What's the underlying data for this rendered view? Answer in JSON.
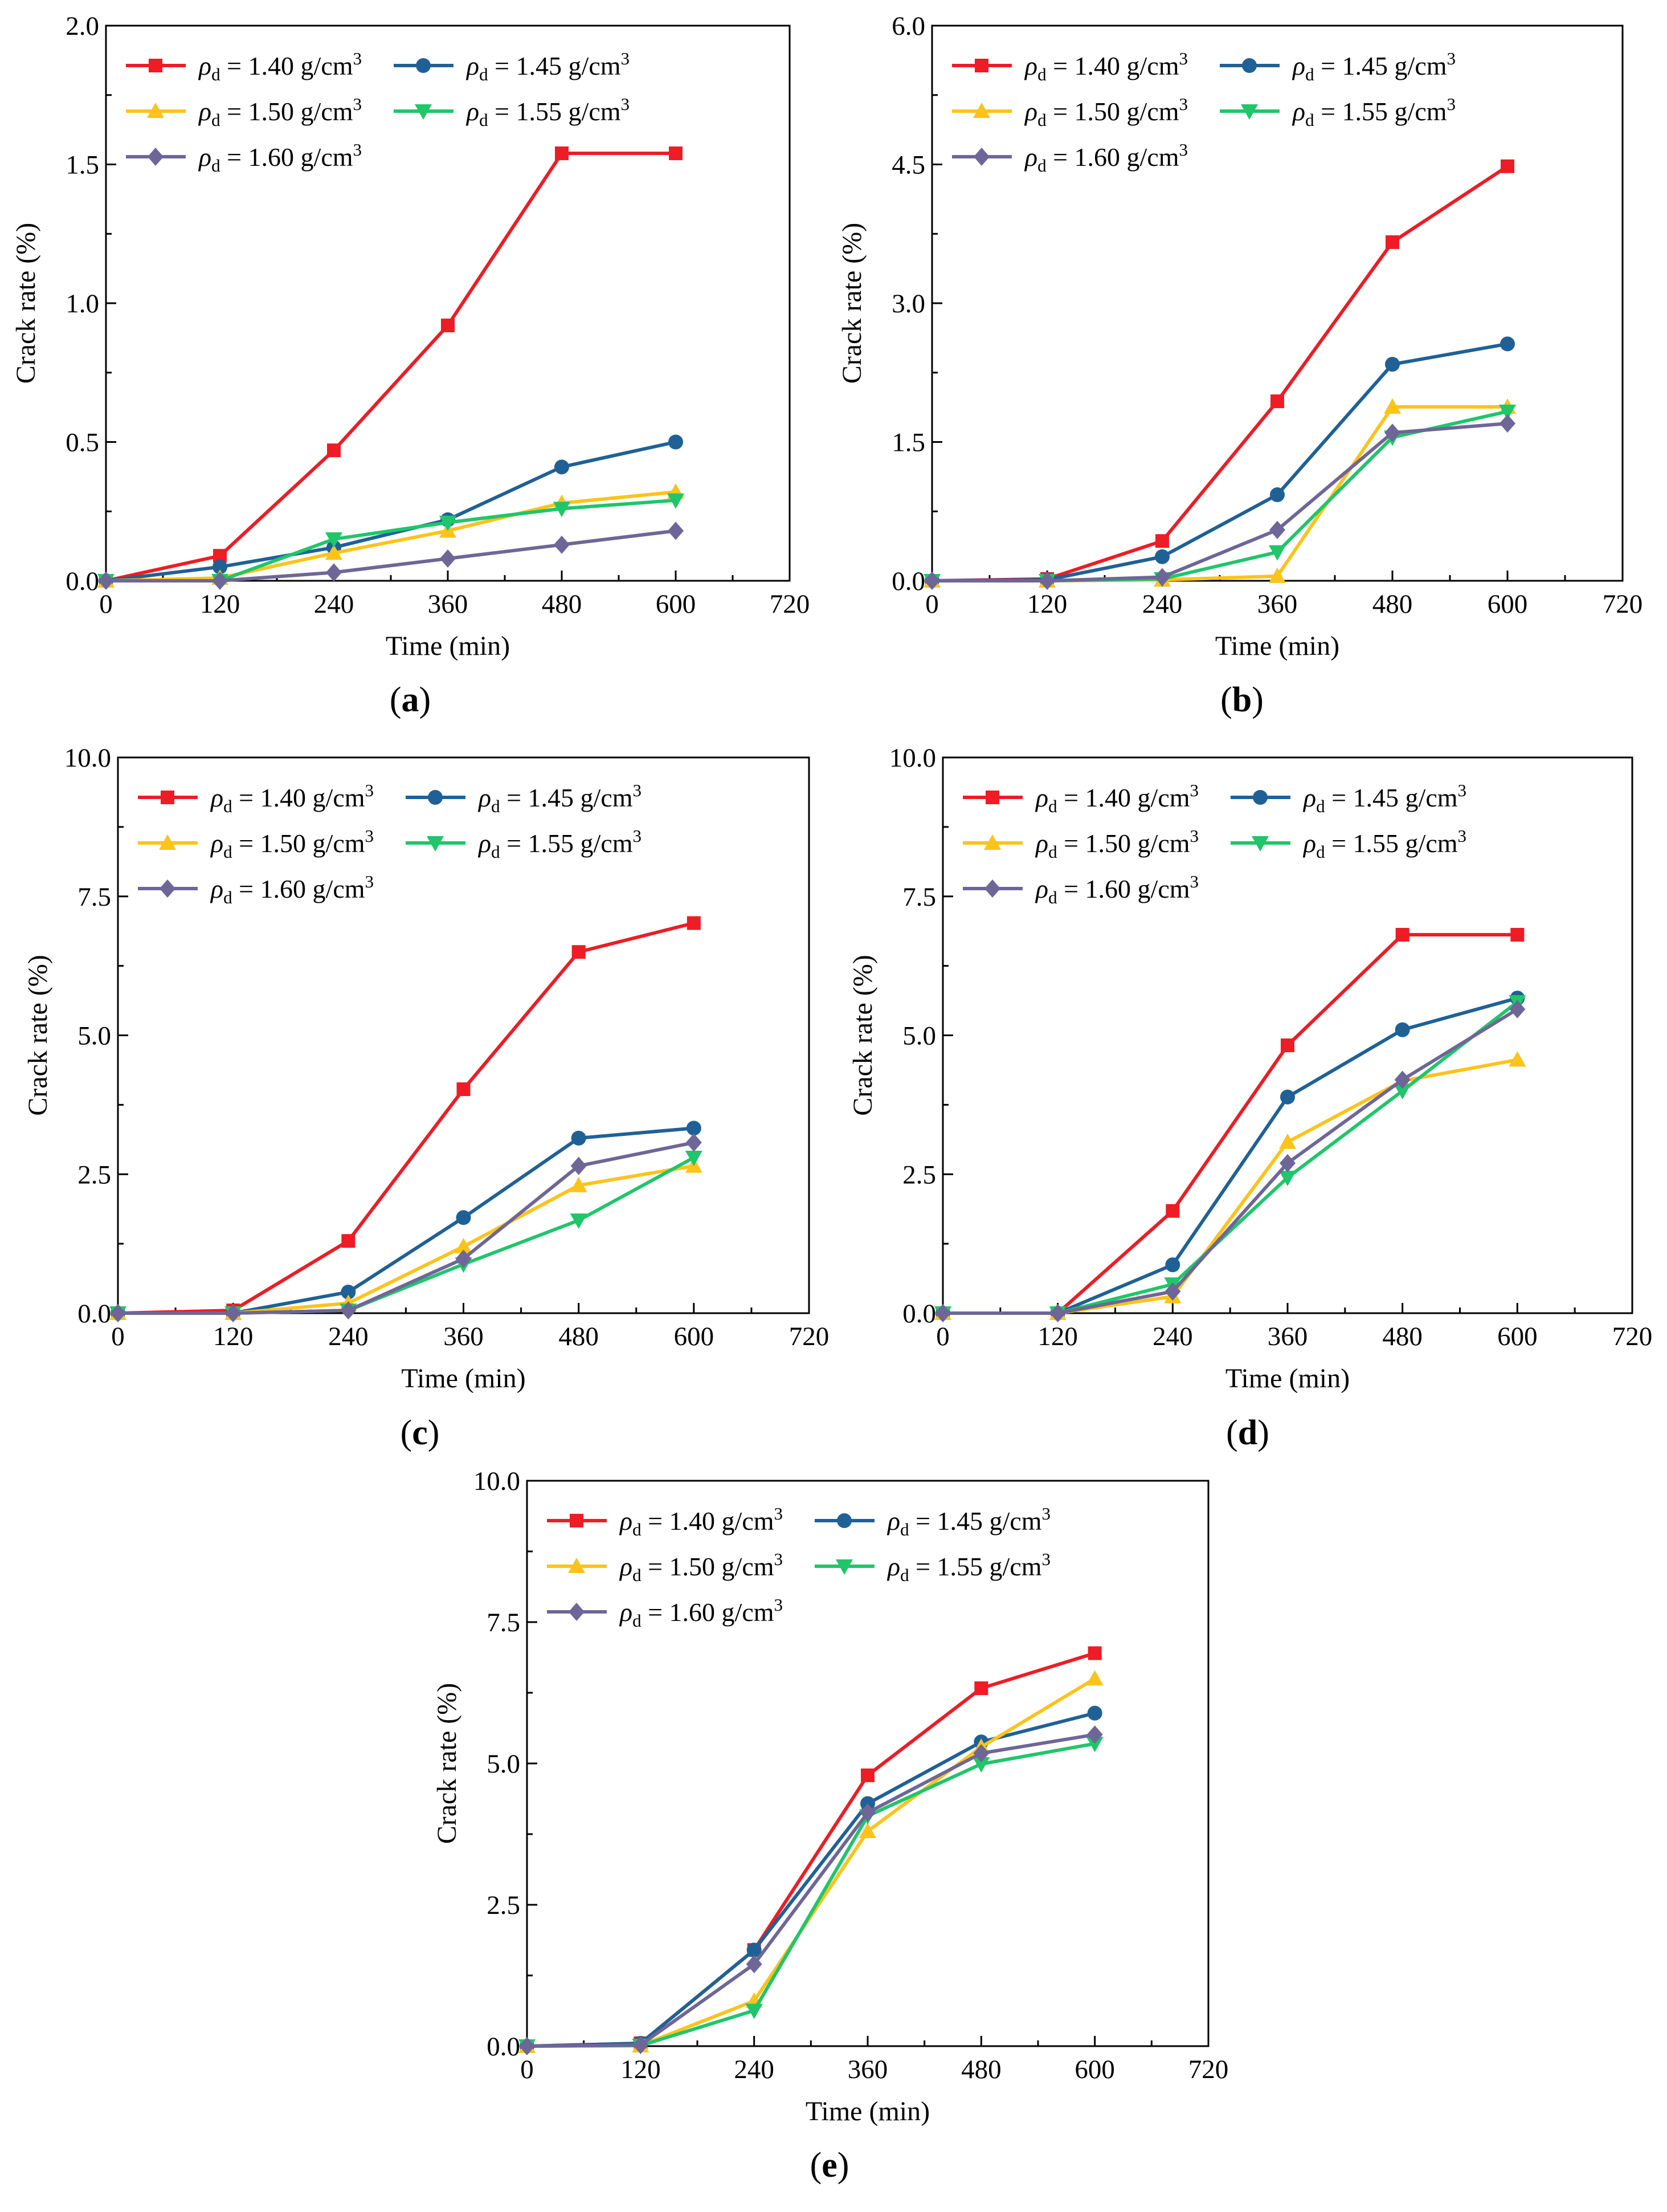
{
  "figure": {
    "colors": {
      "s140": "#EE1C25",
      "s145": "#1F6196",
      "s150": "#FCC31A",
      "s155": "#1FC66A",
      "s160": "#6E6697"
    },
    "legend": {
      "rho": "ρ",
      "sub": "d",
      "unit": "g/cm",
      "sup": "3",
      "values": [
        "= 1.40",
        "= 1.45",
        "= 1.50",
        "= 1.55",
        "= 1.60"
      ]
    },
    "panel_paren_open": "(",
    "panel_paren_close": ")"
  },
  "chart_data": [
    {
      "panel": "a",
      "type": "line",
      "xlabel": "Time (min)",
      "ylabel": "Crack rate (%)",
      "xlim": [
        0,
        720
      ],
      "ylim": [
        0,
        2.0
      ],
      "xticks": [
        "0",
        "120",
        "240",
        "360",
        "480",
        "600",
        "720"
      ],
      "yticks": [
        "0.0",
        "0.5",
        "1.0",
        "1.5",
        "2.0"
      ],
      "x": [
        0,
        120,
        240,
        360,
        480,
        600
      ],
      "series": [
        {
          "name": "ρd = 1.40 g/cm3",
          "marker": "square",
          "values": [
            0,
            0.09,
            0.47,
            0.92,
            1.54,
            1.54
          ]
        },
        {
          "name": "ρd = 1.45 g/cm3",
          "marker": "circle",
          "values": [
            0,
            0.05,
            0.12,
            0.22,
            0.41,
            0.5
          ]
        },
        {
          "name": "ρd = 1.50 g/cm3",
          "marker": "triangle-up",
          "values": [
            0,
            0.01,
            0.1,
            0.18,
            0.28,
            0.32
          ]
        },
        {
          "name": "ρd = 1.55 g/cm3",
          "marker": "triangle-down",
          "values": [
            0,
            0,
            0.15,
            0.21,
            0.26,
            0.29
          ]
        },
        {
          "name": "ρd = 1.60 g/cm3",
          "marker": "diamond",
          "values": [
            0,
            0,
            0.03,
            0.08,
            0.13,
            0.18
          ]
        }
      ]
    },
    {
      "panel": "b",
      "type": "line",
      "xlabel": "Time (min)",
      "ylabel": "Crack rate (%)",
      "xlim": [
        0,
        720
      ],
      "ylim": [
        0,
        6.0
      ],
      "xticks": [
        "0",
        "120",
        "240",
        "360",
        "480",
        "600",
        "720"
      ],
      "yticks": [
        "0.0",
        "1.5",
        "3.0",
        "4.5",
        "6.0"
      ],
      "x": [
        0,
        120,
        240,
        360,
        480,
        600
      ],
      "series": [
        {
          "name": "ρd = 1.40 g/cm3",
          "marker": "square",
          "values": [
            0,
            0.02,
            0.43,
            1.94,
            3.66,
            4.48
          ]
        },
        {
          "name": "ρd = 1.45 g/cm3",
          "marker": "circle",
          "values": [
            0,
            0.01,
            0.26,
            0.93,
            2.34,
            2.56
          ]
        },
        {
          "name": "ρd = 1.50 g/cm3",
          "marker": "triangle-up",
          "values": [
            0,
            0,
            0.01,
            0.05,
            1.88,
            1.88
          ]
        },
        {
          "name": "ρd = 1.55 g/cm3",
          "marker": "triangle-down",
          "values": [
            0,
            0,
            0.02,
            0.31,
            1.55,
            1.83
          ]
        },
        {
          "name": "ρd = 1.60 g/cm3",
          "marker": "diamond",
          "values": [
            0,
            0,
            0.04,
            0.55,
            1.6,
            1.7
          ]
        }
      ]
    },
    {
      "panel": "c",
      "type": "line",
      "xlabel": "Time (min)",
      "ylabel": "Crack rate (%)",
      "xlim": [
        0,
        720
      ],
      "ylim": [
        0,
        10.0
      ],
      "xticks": [
        "0",
        "120",
        "240",
        "360",
        "480",
        "600",
        "720"
      ],
      "yticks": [
        "0.0",
        "2.5",
        "5.0",
        "7.5",
        "10.0"
      ],
      "x": [
        0,
        120,
        240,
        360,
        480,
        600
      ],
      "series": [
        {
          "name": "ρd = 1.40 g/cm3",
          "marker": "square",
          "values": [
            0,
            0.05,
            1.3,
            4.03,
            6.5,
            7.02
          ]
        },
        {
          "name": "ρd = 1.45 g/cm3",
          "marker": "circle",
          "values": [
            0,
            0,
            0.38,
            1.72,
            3.15,
            3.33
          ]
        },
        {
          "name": "ρd = 1.50 g/cm3",
          "marker": "triangle-up",
          "values": [
            0,
            0,
            0.18,
            1.2,
            2.3,
            2.65
          ]
        },
        {
          "name": "ρd = 1.55 g/cm3",
          "marker": "triangle-down",
          "values": [
            0,
            0,
            0.05,
            0.88,
            1.67,
            2.8
          ]
        },
        {
          "name": "ρd = 1.60 g/cm3",
          "marker": "diamond",
          "values": [
            0,
            0,
            0.05,
            0.98,
            2.65,
            3.07
          ]
        }
      ]
    },
    {
      "panel": "d",
      "type": "line",
      "xlabel": "Time (min)",
      "ylabel": "Crack rate (%)",
      "xlim": [
        0,
        720
      ],
      "ylim": [
        0,
        10.0
      ],
      "xticks": [
        "0",
        "120",
        "240",
        "360",
        "480",
        "600",
        "720"
      ],
      "yticks": [
        "0.0",
        "2.5",
        "5.0",
        "7.5",
        "10.0"
      ],
      "x": [
        0,
        120,
        240,
        360,
        480,
        600
      ],
      "series": [
        {
          "name": "ρd = 1.40 g/cm3",
          "marker": "square",
          "values": [
            0,
            0,
            1.84,
            4.82,
            6.81,
            6.81
          ]
        },
        {
          "name": "ρd = 1.45 g/cm3",
          "marker": "circle",
          "values": [
            0,
            0,
            0.87,
            3.89,
            5.1,
            5.67
          ]
        },
        {
          "name": "ρd = 1.50 g/cm3",
          "marker": "triangle-up",
          "values": [
            0,
            0,
            0.3,
            3.08,
            4.18,
            4.56
          ]
        },
        {
          "name": "ρd = 1.55 g/cm3",
          "marker": "triangle-down",
          "values": [
            0,
            0,
            0.52,
            2.44,
            4.0,
            5.6
          ]
        },
        {
          "name": "ρd = 1.60 g/cm3",
          "marker": "diamond",
          "values": [
            0,
            0,
            0.39,
            2.7,
            4.2,
            5.47
          ]
        }
      ]
    },
    {
      "panel": "e",
      "type": "line",
      "xlabel": "Time (min)",
      "ylabel": "Crack rate (%)",
      "xlim": [
        0,
        720
      ],
      "ylim": [
        0,
        10.0
      ],
      "xticks": [
        "0",
        "120",
        "240",
        "360",
        "480",
        "600",
        "720"
      ],
      "yticks": [
        "0.0",
        "2.5",
        "5.0",
        "7.5",
        "10.0"
      ],
      "x": [
        0,
        120,
        240,
        360,
        480,
        600
      ],
      "series": [
        {
          "name": "ρd = 1.40 g/cm3",
          "marker": "square",
          "values": [
            0,
            0.05,
            1.7,
            4.79,
            6.33,
            6.95
          ]
        },
        {
          "name": "ρd = 1.45 g/cm3",
          "marker": "circle",
          "values": [
            0,
            0.05,
            1.7,
            4.29,
            5.38,
            5.89
          ]
        },
        {
          "name": "ρd = 1.50 g/cm3",
          "marker": "triangle-up",
          "values": [
            0,
            0.01,
            0.8,
            3.8,
            5.29,
            6.5
          ]
        },
        {
          "name": "ρd = 1.55 g/cm3",
          "marker": "triangle-down",
          "values": [
            0,
            0.01,
            0.63,
            4.07,
            4.99,
            5.35
          ]
        },
        {
          "name": "ρd = 1.60 g/cm3",
          "marker": "diamond",
          "values": [
            0,
            0.02,
            1.45,
            4.13,
            5.18,
            5.51
          ]
        }
      ]
    }
  ]
}
